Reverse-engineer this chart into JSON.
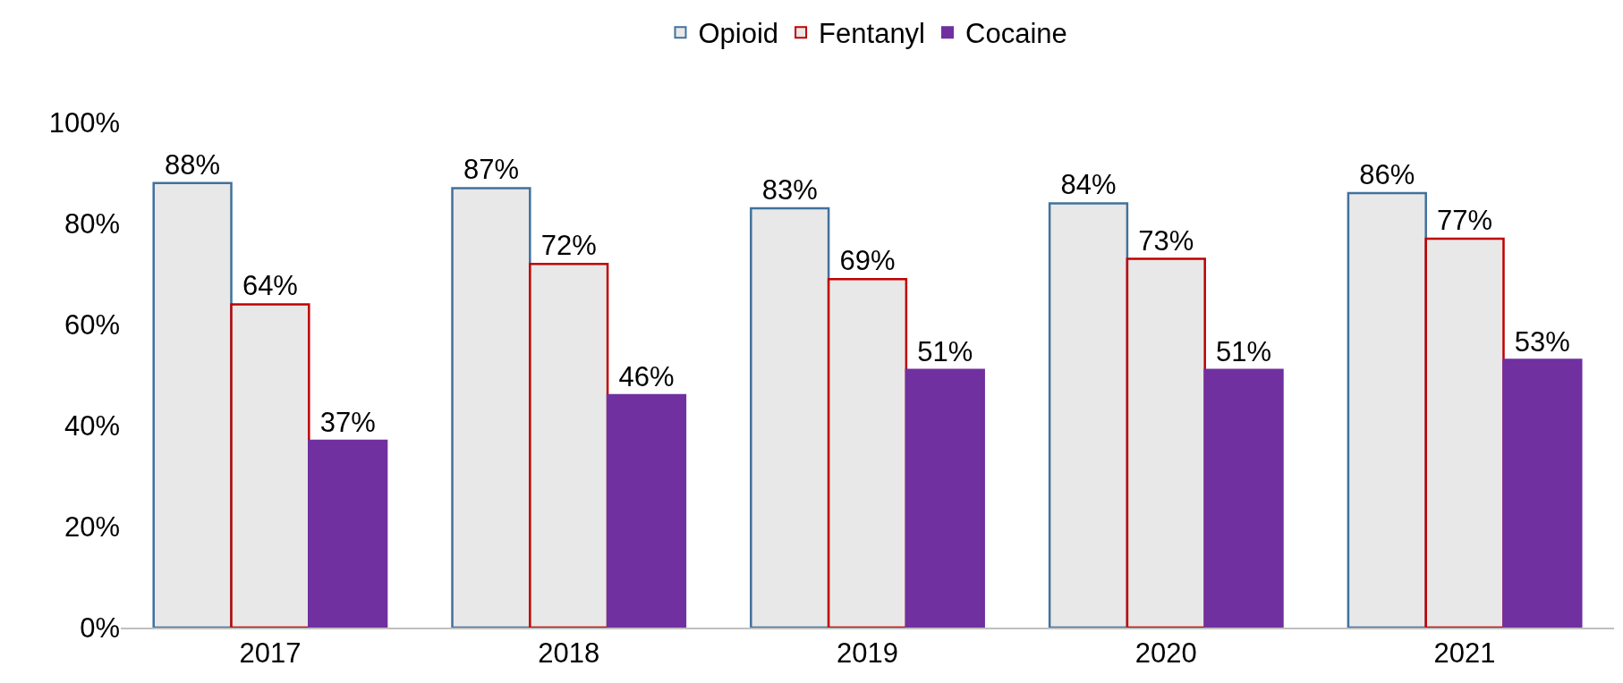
{
  "chart_data": {
    "type": "bar",
    "categories": [
      "2017",
      "2018",
      "2019",
      "2020",
      "2021"
    ],
    "series": [
      {
        "name": "Opioid",
        "color": "#e8e8e8",
        "values": [
          88,
          87,
          83,
          84,
          86
        ]
      },
      {
        "name": "Fentanyl",
        "color": "#e8e8e8",
        "values": [
          64,
          72,
          69,
          73,
          77
        ]
      },
      {
        "name": "Cocaine",
        "color": "#7030a0",
        "values": [
          37,
          46,
          51,
          51,
          53
        ]
      }
    ],
    "ylim": [
      0,
      100
    ],
    "yticks": [
      {
        "value": 0,
        "label": "0%"
      },
      {
        "value": 20,
        "label": "20%"
      },
      {
        "value": 40,
        "label": "40%"
      },
      {
        "value": 60,
        "label": "60%"
      },
      {
        "value": 80,
        "label": "80%"
      },
      {
        "value": 100,
        "label": "100%"
      }
    ],
    "value_labels": [
      [
        "88%",
        "87%",
        "83%",
        "84%",
        "86%"
      ],
      [
        "64%",
        "72%",
        "69%",
        "73%",
        "77%"
      ],
      [
        "37%",
        "46%",
        "51%",
        "51%",
        "53%"
      ]
    ],
    "grid": false,
    "legend": "top"
  }
}
